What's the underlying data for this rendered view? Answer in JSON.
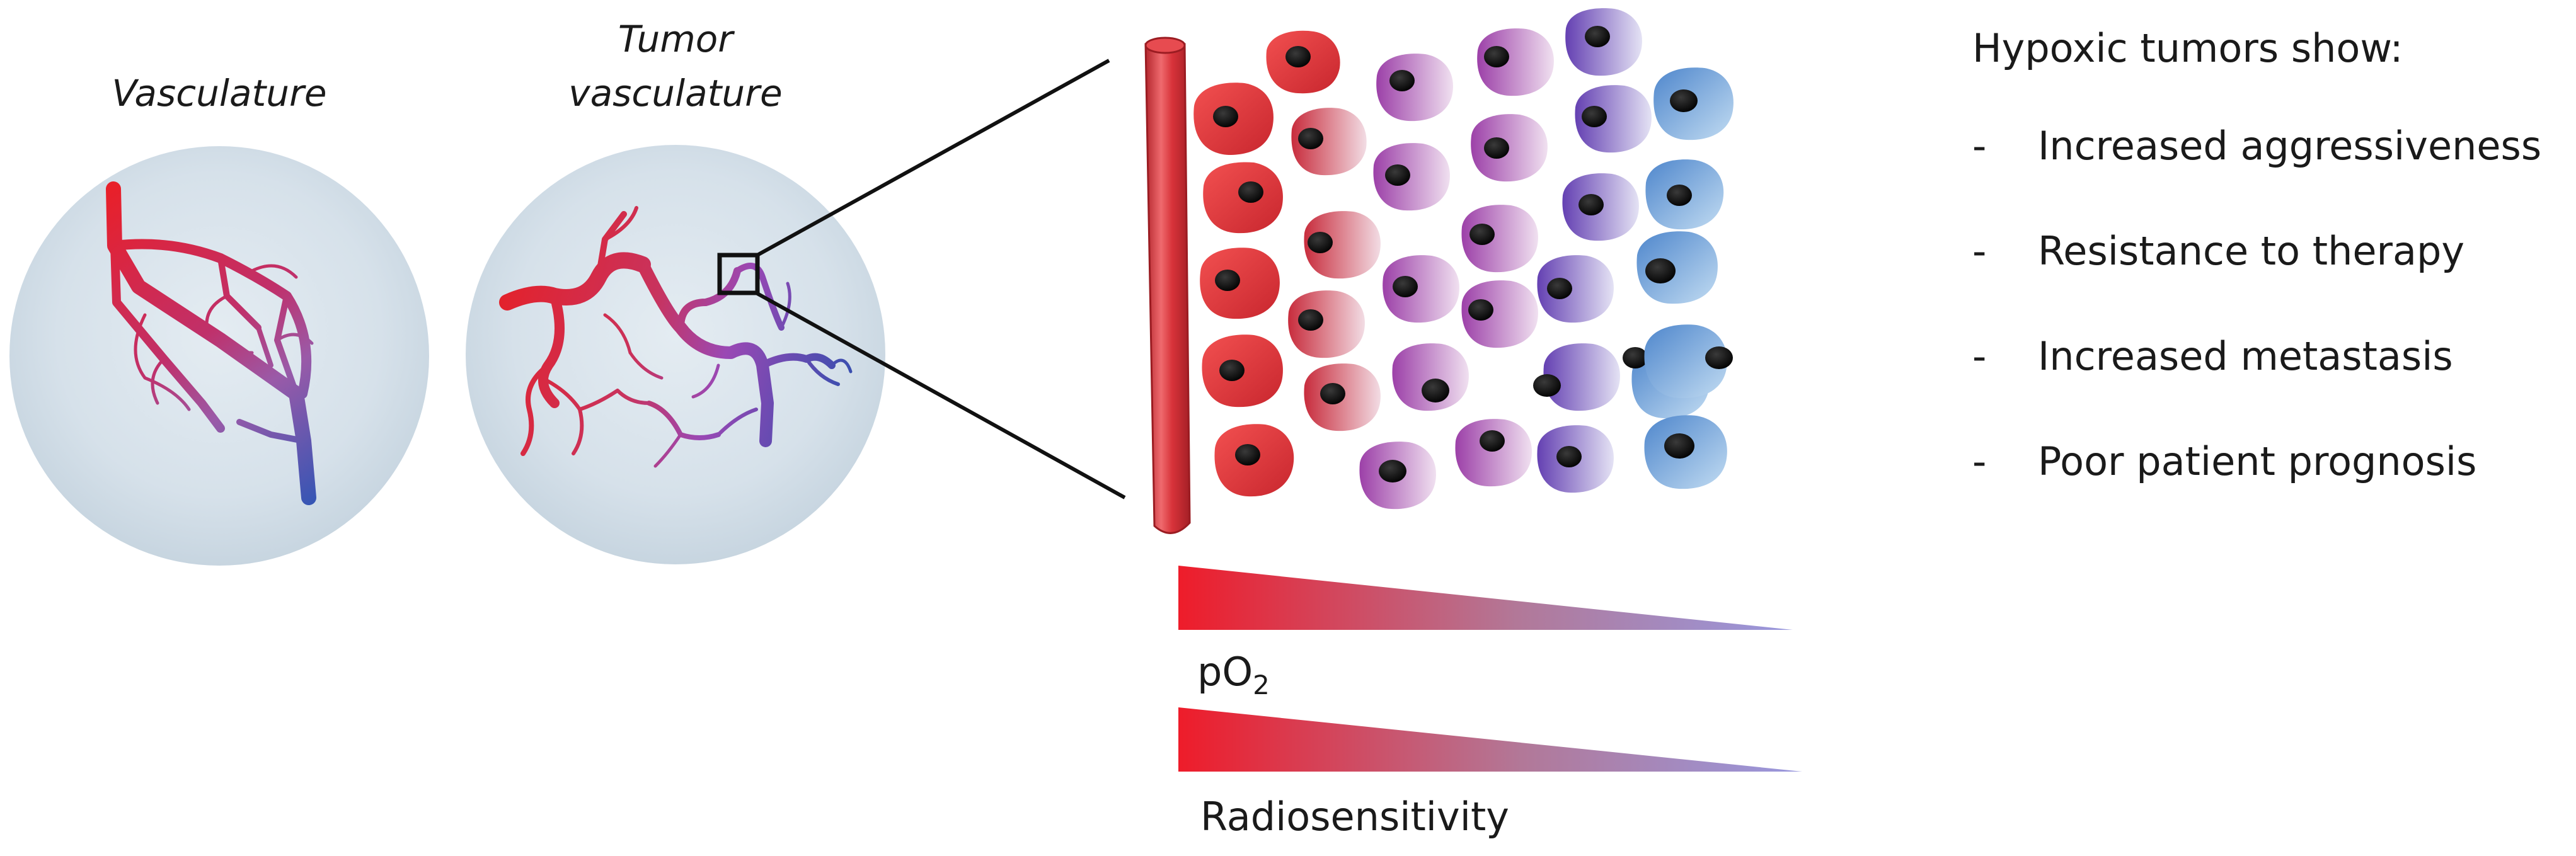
{
  "labels": {
    "normal_vasculature": "Vasculature",
    "tumor_vasculature_line1": "Tumor",
    "tumor_vasculature_line2": "vasculature",
    "po2": "pO",
    "po2_subscript": "2",
    "radiosensitivity": "Radiosensitivity"
  },
  "hypoxia_panel": {
    "heading": "Hypoxic tumors show:",
    "bullet_marker": "-",
    "items": [
      "Increased aggressiveness",
      "Resistance to therapy",
      "Increased metastasis",
      "Poor patient prognosis"
    ]
  },
  "colors": {
    "oxygenated": "#e8202a",
    "intermediate": "#9a48b4",
    "hypoxic": "#3f5fae",
    "hypoxic_cell": "#6ea8df",
    "tissue": "#cfdce6"
  }
}
